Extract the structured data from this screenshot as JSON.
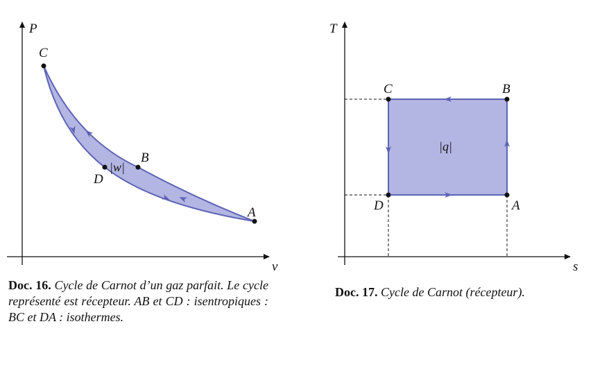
{
  "figures": [
    {
      "axes": {
        "y": "P",
        "x": "v"
      },
      "points": [
        "A",
        "B",
        "C",
        "D"
      ],
      "area_label": "|w|",
      "caption": {
        "label": "Doc. 16.",
        "text": "Cycle de Carnot d’un gaz parfait. Le cycle représenté est récepteur. AB et CD : isentropiques : BC et DA : isothermes."
      }
    },
    {
      "axes": {
        "y": "T",
        "x": "s"
      },
      "points": [
        "A",
        "B",
        "C",
        "D"
      ],
      "area_label": "|q|",
      "caption": {
        "label": "Doc. 17.",
        "text": "Cycle de Carnot (récepteur)."
      }
    }
  ]
}
